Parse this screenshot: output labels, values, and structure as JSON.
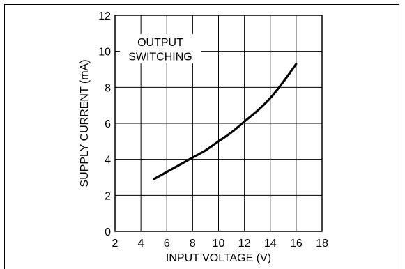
{
  "chart_data": {
    "type": "line",
    "xlabel": "INPUT VOLTAGE (V)",
    "ylabel": "SUPPLY CURRENT (mA)",
    "xlim": [
      2,
      18
    ],
    "ylim": [
      0,
      12
    ],
    "x_ticks": [
      2,
      4,
      6,
      8,
      10,
      12,
      14,
      16,
      18
    ],
    "y_ticks": [
      0,
      2,
      4,
      6,
      8,
      10,
      12
    ],
    "grid": true,
    "annotation": [
      "OUTPUT",
      "SWITCHING"
    ],
    "series": [
      {
        "x": [
          5,
          6,
          7,
          8,
          9,
          10,
          11,
          12,
          13,
          14,
          15,
          16
        ],
        "y": [
          2.9,
          3.3,
          3.7,
          4.1,
          4.5,
          5.0,
          5.5,
          6.1,
          6.7,
          7.4,
          8.3,
          9.3
        ]
      }
    ]
  }
}
